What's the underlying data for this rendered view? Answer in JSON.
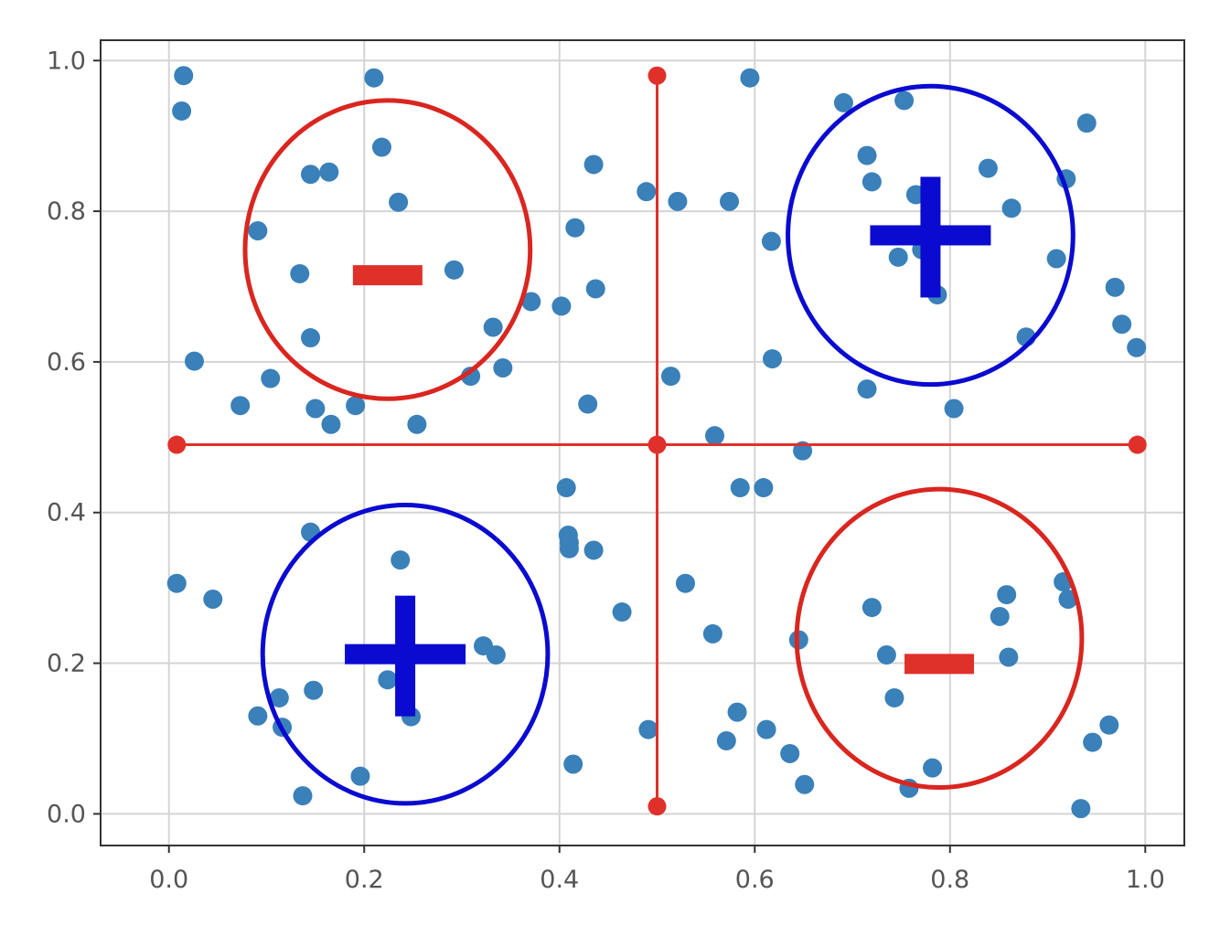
{
  "chart_data": {
    "type": "scatter",
    "title": "",
    "xlabel": "",
    "ylabel": "",
    "xlim": [
      -0.07,
      1.04
    ],
    "ylim": [
      -0.042,
      1.027
    ],
    "grid": true,
    "xticks": [
      "0.0",
      "0.2",
      "0.4",
      "0.6",
      "0.8",
      "1.0"
    ],
    "yticks": [
      "0.0",
      "0.2",
      "0.4",
      "0.6",
      "0.8",
      "1.0"
    ],
    "point_color": "#3a80b9",
    "points": [
      [
        0.015,
        0.98
      ],
      [
        0.013,
        0.933
      ],
      [
        0.21,
        0.977
      ],
      [
        0.218,
        0.885
      ],
      [
        0.145,
        0.849
      ],
      [
        0.164,
        0.852
      ],
      [
        0.235,
        0.812
      ],
      [
        0.091,
        0.774
      ],
      [
        0.134,
        0.717
      ],
      [
        0.292,
        0.722
      ],
      [
        0.145,
        0.632
      ],
      [
        0.026,
        0.601
      ],
      [
        0.104,
        0.578
      ],
      [
        0.073,
        0.542
      ],
      [
        0.15,
        0.538
      ],
      [
        0.166,
        0.517
      ],
      [
        0.191,
        0.542
      ],
      [
        0.254,
        0.517
      ],
      [
        0.309,
        0.581
      ],
      [
        0.332,
        0.646
      ],
      [
        0.342,
        0.592
      ],
      [
        0.371,
        0.68
      ],
      [
        0.402,
        0.674
      ],
      [
        0.416,
        0.778
      ],
      [
        0.435,
        0.862
      ],
      [
        0.437,
        0.697
      ],
      [
        0.429,
        0.544
      ],
      [
        0.489,
        0.826
      ],
      [
        0.521,
        0.813
      ],
      [
        0.574,
        0.813
      ],
      [
        0.595,
        0.977
      ],
      [
        0.617,
        0.76
      ],
      [
        0.618,
        0.604
      ],
      [
        0.514,
        0.581
      ],
      [
        0.559,
        0.502
      ],
      [
        0.649,
        0.482
      ],
      [
        0.585,
        0.433
      ],
      [
        0.609,
        0.433
      ],
      [
        0.691,
        0.944
      ],
      [
        0.753,
        0.947
      ],
      [
        0.94,
        0.917
      ],
      [
        0.715,
        0.874
      ],
      [
        0.72,
        0.839
      ],
      [
        0.839,
        0.857
      ],
      [
        0.765,
        0.822
      ],
      [
        0.863,
        0.804
      ],
      [
        0.919,
        0.843
      ],
      [
        0.747,
        0.739
      ],
      [
        0.771,
        0.749
      ],
      [
        0.909,
        0.737
      ],
      [
        0.787,
        0.689
      ],
      [
        0.969,
        0.699
      ],
      [
        0.976,
        0.65
      ],
      [
        0.991,
        0.619
      ],
      [
        0.878,
        0.633
      ],
      [
        0.715,
        0.564
      ],
      [
        0.804,
        0.538
      ],
      [
        0.407,
        0.433
      ],
      [
        0.409,
        0.37
      ],
      [
        0.41,
        0.36
      ],
      [
        0.41,
        0.352
      ],
      [
        0.435,
        0.35
      ],
      [
        0.464,
        0.268
      ],
      [
        0.529,
        0.306
      ],
      [
        0.557,
        0.239
      ],
      [
        0.145,
        0.374
      ],
      [
        0.237,
        0.337
      ],
      [
        0.008,
        0.306
      ],
      [
        0.045,
        0.285
      ],
      [
        0.322,
        0.223
      ],
      [
        0.335,
        0.211
      ],
      [
        0.224,
        0.178
      ],
      [
        0.113,
        0.154
      ],
      [
        0.148,
        0.164
      ],
      [
        0.091,
        0.13
      ],
      [
        0.116,
        0.115
      ],
      [
        0.248,
        0.129
      ],
      [
        0.196,
        0.05
      ],
      [
        0.137,
        0.024
      ],
      [
        0.414,
        0.066
      ],
      [
        0.491,
        0.112
      ],
      [
        0.571,
        0.097
      ],
      [
        0.582,
        0.135
      ],
      [
        0.612,
        0.112
      ],
      [
        0.636,
        0.08
      ],
      [
        0.651,
        0.039
      ],
      [
        0.645,
        0.231
      ],
      [
        0.72,
        0.274
      ],
      [
        0.735,
        0.211
      ],
      [
        0.743,
        0.154
      ],
      [
        0.858,
        0.291
      ],
      [
        0.851,
        0.262
      ],
      [
        0.86,
        0.208
      ],
      [
        0.916,
        0.308
      ],
      [
        0.921,
        0.285
      ],
      [
        0.782,
        0.061
      ],
      [
        0.758,
        0.034
      ],
      [
        0.963,
        0.118
      ],
      [
        0.946,
        0.095
      ],
      [
        0.934,
        0.007
      ]
    ],
    "annotations": {
      "lines_color": "#e0302a",
      "hline": {
        "y": 0.49,
        "x": [
          0.008,
          0.992
        ]
      },
      "vline": {
        "x": 0.5,
        "y": [
          0.01,
          0.98
        ]
      },
      "circles": [
        {
          "cx": 0.224,
          "cy": 0.749,
          "rx": 0.146,
          "ry": 0.198,
          "color": "#d9261f",
          "sign": "-"
        },
        {
          "cx": 0.78,
          "cy": 0.768,
          "rx": 0.146,
          "ry": 0.198,
          "color": "#0a0ad0",
          "sign": "+"
        },
        {
          "cx": 0.242,
          "cy": 0.212,
          "rx": 0.146,
          "ry": 0.198,
          "color": "#0a0ad0",
          "sign": "+"
        },
        {
          "cx": 0.789,
          "cy": 0.233,
          "rx": 0.146,
          "ry": 0.198,
          "color": "#d9261f",
          "sign": "-"
        }
      ]
    }
  }
}
